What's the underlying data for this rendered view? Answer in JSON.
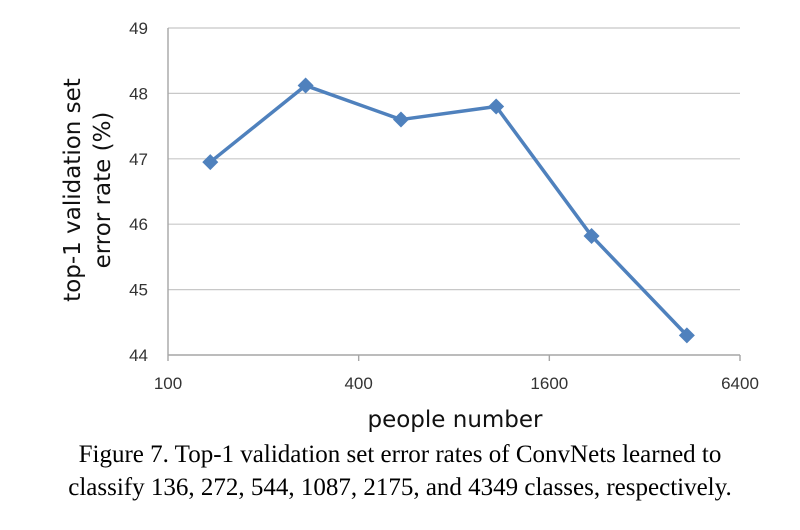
{
  "chart_data": {
    "type": "line",
    "title": "",
    "xlabel": "people number",
    "ylabel": "top-1 validation set error rate (%)",
    "ylabel_lines": [
      "top-1 validation set",
      "error rate (%)"
    ],
    "x_scale": "log2",
    "xlim": [
      100,
      6400
    ],
    "ylim": [
      44,
      49
    ],
    "x_ticks": [
      100,
      400,
      1600,
      6400
    ],
    "y_ticks": [
      44,
      45,
      46,
      47,
      48,
      49
    ],
    "grid": true,
    "legend": "none",
    "series": [
      {
        "x": [
          136,
          272,
          544,
          1087,
          2175,
          4349
        ],
        "y": [
          46.95,
          48.12,
          47.6,
          47.8,
          45.82,
          44.3
        ]
      }
    ],
    "colors": {
      "line": "#4f81bd",
      "grid": "#c8c8c8",
      "axis": "#a6a6a6"
    }
  },
  "caption": {
    "line1": "Figure 7. Top-1 validation set error rates of ConvNets learned to",
    "line2": "classify 136, 272, 544, 1087, 2175, and 4349 classes, respectively."
  }
}
